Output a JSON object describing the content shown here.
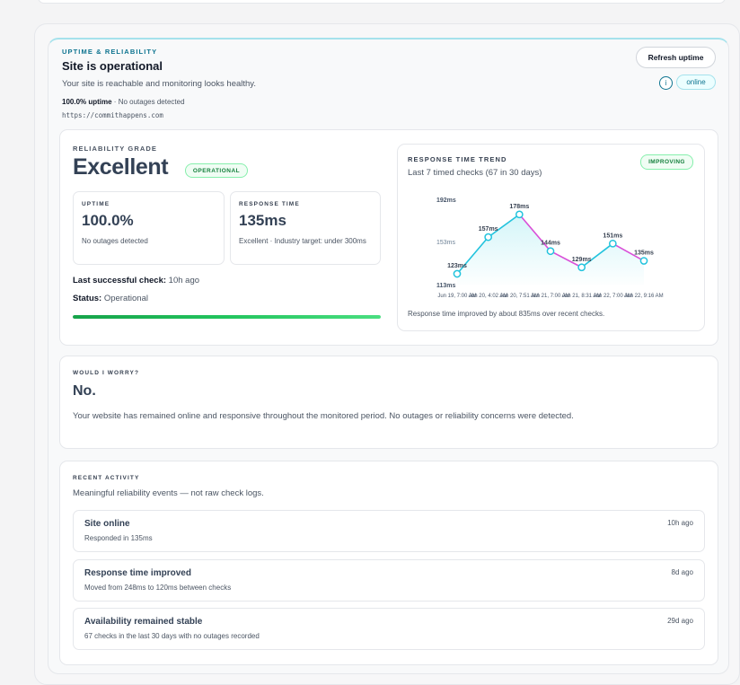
{
  "header": {
    "eyebrow": "UPTIME & RELIABILITY",
    "title": "Site is operational",
    "subtitle": "Your site is reachable and monitoring looks healthy.",
    "uptime_strong": "100.0% uptime",
    "uptime_rest": " · No outages detected",
    "url": "https://commithappens.com",
    "refresh_label": "Refresh uptime",
    "info_glyph": "i",
    "status_badge": "online"
  },
  "grade": {
    "eyebrow": "RELIABILITY GRADE",
    "value": "Excellent",
    "badge": "OPERATIONAL",
    "uptime": {
      "label": "UPTIME",
      "value": "100.0%",
      "note": "No outages detected"
    },
    "response": {
      "label": "RESPONSE TIME",
      "value": "135ms",
      "note": "Excellent · Industry target: under 300ms"
    },
    "last_check_label": "Last successful check:",
    "last_check_value": " 10h ago",
    "status_label": "Status:",
    "status_value": " Operational",
    "progress": 1.0
  },
  "trend": {
    "eyebrow": "RESPONSE TIME TREND",
    "subtitle": "Last 7 timed checks (67 in 30 days)",
    "badge": "IMPROVING",
    "note": "Response time improved by about 835ms over recent checks."
  },
  "chart_data": {
    "type": "line",
    "x": [
      "Jun 19, 7:00 AM",
      "Jun 20, 4:02 AM",
      "Jun 20, 7:51 AM",
      "Jun 21, 7:00 AM",
      "Jun 21, 8:31 AM",
      "Jun 22, 7:00 AM",
      "Jun 22, 9:16 AM"
    ],
    "values": [
      123,
      157,
      178,
      144,
      129,
      151,
      135
    ],
    "point_labels": [
      "123ms",
      "157ms",
      "178ms",
      "144ms",
      "129ms",
      "151ms",
      "135ms"
    ],
    "y_ticks": [
      "192ms",
      "153ms",
      "113ms"
    ],
    "y_tick_values": [
      192,
      153,
      113
    ],
    "ylim": [
      113,
      192
    ],
    "colors": {
      "up": "#22c3dd",
      "down": "#d94fd8",
      "fill": "#cff4f8",
      "point": "#22c3dd"
    }
  },
  "worry": {
    "eyebrow": "WOULD I WORRY?",
    "title": "No.",
    "body": "Your website has remained online and responsive throughout the monitored period. No outages or reliability concerns were detected."
  },
  "activity": {
    "eyebrow": "RECENT ACTIVITY",
    "subtitle": "Meaningful reliability events — not raw check logs.",
    "items": [
      {
        "title": "Site online",
        "desc": "Responded in 135ms",
        "time": "10h ago"
      },
      {
        "title": "Response time improved",
        "desc": "Moved from 248ms to 120ms between checks",
        "time": "8d ago"
      },
      {
        "title": "Availability remained stable",
        "desc": "67 checks in the last 30 days with no outages recorded",
        "time": "29d ago"
      }
    ]
  }
}
